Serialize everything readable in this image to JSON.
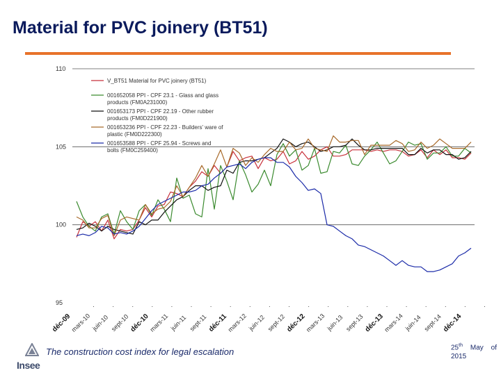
{
  "slide": {
    "title": "Material for PVC joinery (BT51)",
    "footer_text": "The construction cost index for legal escalation",
    "date_day": "25",
    "date_suffix": "th",
    "date_rest": "May of 2015",
    "logo_text": "Insee",
    "accent_color": "#e8722a",
    "title_color": "#0a1a5c"
  },
  "chart_data": {
    "type": "line",
    "title": "",
    "xlabel": "",
    "ylabel": "",
    "ylim": [
      95,
      110
    ],
    "yticks": [
      110,
      105,
      100,
      95
    ],
    "ytick_labels": [
      "110",
      "105",
      "100",
      "95"
    ],
    "xtick_labels": [
      {
        "label": "déc-09",
        "bold": true
      },
      {
        "label": "mars-10",
        "bold": false
      },
      {
        "label": "juin-10",
        "bold": false
      },
      {
        "label": "sept-10",
        "bold": false
      },
      {
        "label": "déc-10",
        "bold": true
      },
      {
        "label": "mars-11",
        "bold": false
      },
      {
        "label": "juin-11",
        "bold": false
      },
      {
        "label": "sept-11",
        "bold": false
      },
      {
        "label": "déc-11",
        "bold": true
      },
      {
        "label": "mars-12",
        "bold": false
      },
      {
        "label": "juin-12",
        "bold": false
      },
      {
        "label": "sept-12",
        "bold": false
      },
      {
        "label": "déc-12",
        "bold": true
      },
      {
        "label": "mars-13",
        "bold": false
      },
      {
        "label": "juin-13",
        "bold": false
      },
      {
        "label": "sept-13",
        "bold": false
      },
      {
        "label": "déc-13",
        "bold": true
      },
      {
        "label": "mars-14",
        "bold": false
      },
      {
        "label": "juin-14",
        "bold": false
      },
      {
        "label": "sept-14",
        "bold": false
      },
      {
        "label": "déc-14",
        "bold": true
      }
    ],
    "series": [
      {
        "name": "V_BT51 Material for PVC joinery (BT51)",
        "color": "#c8303a",
        "values": [
          99.2,
          100.2,
          99.9,
          100.2,
          99.6,
          100.3,
          99.1,
          99.7,
          99.6,
          99.7,
          100.3,
          101.1,
          100.5,
          101.2,
          101.3,
          102.1,
          102.0,
          101.8,
          102.4,
          102.8,
          103.4,
          103.1,
          103.8,
          103.3,
          103.7,
          104.7,
          104.1,
          104.3,
          104.4,
          103.6,
          104.3,
          104.1,
          104.2,
          104.7,
          103.9,
          104.1,
          104.7,
          104.2,
          104.4,
          104.8,
          105.0,
          104.4,
          104.4,
          104.5,
          104.8,
          104.8,
          104.8,
          104.7,
          104.8,
          104.7,
          104.8,
          104.8,
          104.7,
          104.4,
          104.5,
          104.8,
          104.3,
          104.8,
          104.5,
          104.8,
          104.3,
          104.3,
          104.2,
          104.6
        ]
      },
      {
        "name": "001652058 PPI - CPF 23.1 - Glass and glass products (FM0A231000)",
        "color": "#3a8a2e",
        "values": [
          101.5,
          100.5,
          99.9,
          99.6,
          100.5,
          100.7,
          99.4,
          100.9,
          100.2,
          99.7,
          100.9,
          101.3,
          100.6,
          101.6,
          101.0,
          100.2,
          103.0,
          101.7,
          101.9,
          100.7,
          100.5,
          103.6,
          101.0,
          103.8,
          102.8,
          101.6,
          104.1,
          103.2,
          102.1,
          102.6,
          103.5,
          102.5,
          104.5,
          105.2,
          104.4,
          104.8,
          103.5,
          103.8,
          104.9,
          103.3,
          103.4,
          104.7,
          104.6,
          105.1,
          103.9,
          103.8,
          104.4,
          104.8,
          105.3,
          104.6,
          103.9,
          104.1,
          104.7,
          105.3,
          105.1,
          105.2,
          104.2,
          104.6,
          104.6,
          105.0,
          104.4,
          104.4,
          104.9,
          104.6
        ]
      },
      {
        "name": "001653173 PPI - CPF 22.19 - Other rubber products (FM0D221900)",
        "color": "#111111",
        "values": [
          99.7,
          99.8,
          100.1,
          99.9,
          99.6,
          99.9,
          99.7,
          99.6,
          99.5,
          99.4,
          100.2,
          100.0,
          100.3,
          100.3,
          100.8,
          101.2,
          101.6,
          101.8,
          102.2,
          102.5,
          102.5,
          102.2,
          102.4,
          102.5,
          103.5,
          103.3,
          104.0,
          104.1,
          104.1,
          104.2,
          104.3,
          104.6,
          104.9,
          105.5,
          105.3,
          105.0,
          105.2,
          105.3,
          105.0,
          104.7,
          104.8,
          105.0,
          105.0,
          105.1,
          105.5,
          105.1,
          104.8,
          104.8,
          104.9,
          104.9,
          104.9,
          104.9,
          104.9,
          104.5,
          104.5,
          104.9,
          104.6,
          104.8,
          104.8,
          104.5,
          104.5,
          104.2,
          104.3,
          104.7
        ]
      },
      {
        "name": "001653236 PPI - CPF 22.23 - Builders' ware of plastic (FM0D222300)",
        "color": "#a86a2a",
        "values": [
          100.5,
          100.3,
          99.8,
          99.8,
          100.4,
          100.6,
          99.3,
          100.3,
          100.5,
          100.4,
          100.3,
          101.3,
          100.7,
          101.0,
          101.1,
          101.5,
          102.5,
          101.8,
          102.4,
          103.0,
          103.8,
          103.1,
          103.9,
          104.8,
          103.7,
          104.9,
          104.6,
          103.8,
          104.3,
          104.0,
          104.5,
          104.9,
          104.7,
          104.7,
          105.3,
          104.8,
          104.9,
          105.5,
          104.9,
          104.8,
          104.7,
          105.7,
          105.3,
          105.3,
          105.4,
          105.4,
          104.5,
          105.1,
          105.1,
          105.1,
          105.1,
          105.4,
          105.2,
          104.7,
          104.8,
          105.3,
          104.9,
          105.1,
          105.5,
          105.2,
          104.9,
          104.9,
          104.9,
          105.3
        ]
      },
      {
        "name": "001653588 PPI - CPF 25.94 - Screws and bolts (FM0C259400)",
        "color": "#1a2aa8",
        "values": [
          99.3,
          99.4,
          99.3,
          99.5,
          99.9,
          99.8,
          99.4,
          99.5,
          99.4,
          99.6,
          99.9,
          100.4,
          100.9,
          101.3,
          101.5,
          101.7,
          101.9,
          102.1,
          102.1,
          102.2,
          102.5,
          102.6,
          103.0,
          103.3,
          103.7,
          103.8,
          103.9,
          103.6,
          104.0,
          104.2,
          104.3,
          104.3,
          104.0,
          104.0,
          103.7,
          103.1,
          102.7,
          102.2,
          102.3,
          102.0,
          100.0,
          99.9,
          99.6,
          99.3,
          99.1,
          98.7,
          98.6,
          98.4,
          98.2,
          98.0,
          97.7,
          97.4,
          97.7,
          97.4,
          97.3,
          97.3,
          97.0,
          97.0,
          97.1,
          97.3,
          97.5,
          98.0,
          98.2,
          98.5
        ]
      }
    ],
    "legend": [
      "V_BT51 Material for PVC joinery (BT51)",
      "001652058 PPI - CPF 23.1 - Glass and glass products (FM0A231000)",
      "001653173 PPI - CPF 22.19 - Other rubber products (FM0D221900)",
      "001653236 PPI - CPF 22.23 - Builders' ware of plastic (FM0D222300)",
      "001653588 PPI - CPF 25.94 - Screws and bolts (FM0C259400)"
    ],
    "legend_lines": [
      [
        "V_BT51 Material for PVC joinery (BT51)"
      ],
      [
        "001652058 PPI - CPF 23.1 - Glass and glass",
        "products (FM0A231000)"
      ],
      [
        "001653173 PPI - CPF 22.19 - Other rubber",
        "products (FM0D221900)"
      ],
      [
        "001653236 PPI - CPF 22.23 - Builders' ware of",
        "plastic (FM0D222300)"
      ],
      [
        "001653588 PPI - CPF 25.94 - Screws and",
        "bolts (FM0C259400)"
      ]
    ],
    "legend_position": "top-left",
    "grid": true
  }
}
